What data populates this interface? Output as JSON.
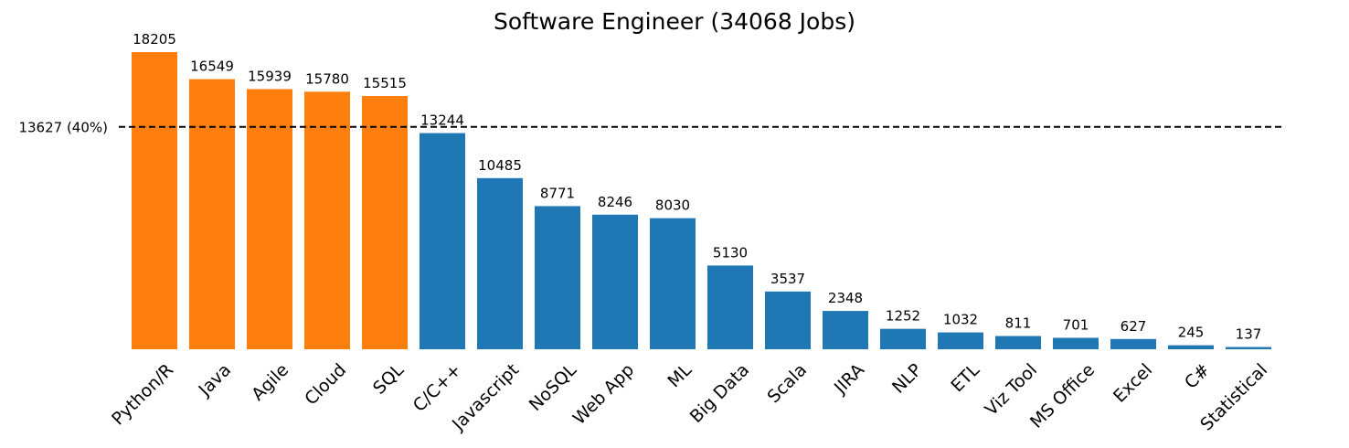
{
  "chart_data": {
    "type": "bar",
    "title": "Software Engineer (34068 Jobs)",
    "xlabel": "",
    "ylabel": "",
    "categories": [
      "Python/R",
      "Java",
      "Agile",
      "Cloud",
      "SQL",
      "C/C++",
      "Javascript",
      "NoSQL",
      "Web App",
      "ML",
      "Big Data",
      "Scala",
      "JIRA",
      "NLP",
      "ETL",
      "Viz Tool",
      "MS Office",
      "Excel",
      "C#",
      "Statistical"
    ],
    "values": [
      18205,
      16549,
      15939,
      15780,
      15515,
      13244,
      10485,
      8771,
      8246,
      8030,
      5130,
      3537,
      2348,
      1252,
      1032,
      811,
      701,
      627,
      245,
      137
    ],
    "ylim": [
      0,
      18205
    ],
    "threshold": {
      "value": 13627,
      "label": "13627 (40%)",
      "style": "dashed"
    },
    "colors": {
      "above_threshold": "#ff7f0e",
      "below_threshold": "#1f77b4",
      "threshold_line": "#000000"
    },
    "grid": false,
    "legend": "none"
  }
}
